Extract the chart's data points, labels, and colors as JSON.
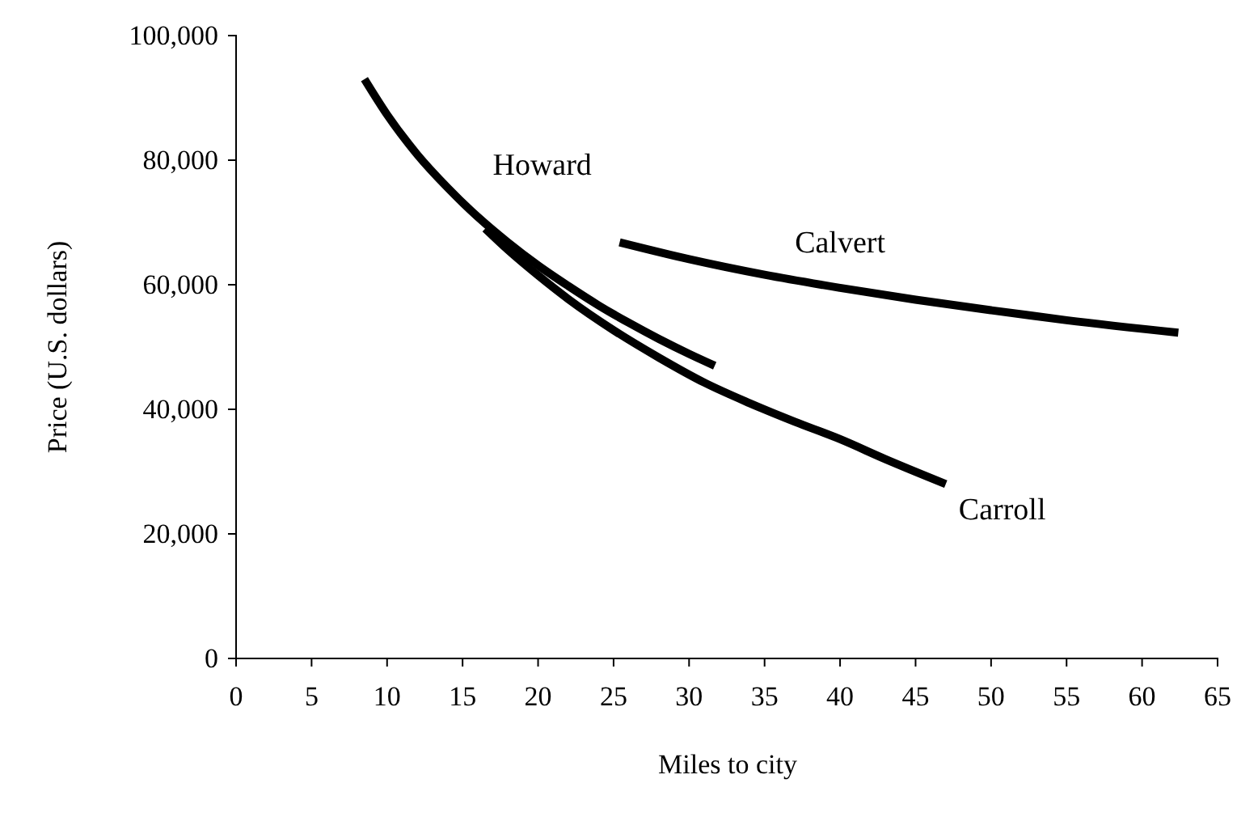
{
  "chart_data": {
    "type": "line",
    "xlabel": "Miles to city",
    "ylabel": "Price (U.S. dollars)",
    "xlim": [
      0,
      65
    ],
    "xticks": [
      0,
      5,
      10,
      15,
      20,
      25,
      30,
      35,
      40,
      45,
      50,
      55,
      60,
      65
    ],
    "ylim": [
      0,
      100000
    ],
    "yticks": [
      0,
      {
        "value": 20000,
        "label": "20,000"
      },
      {
        "value": 40000,
        "label": "40,000"
      },
      {
        "value": 60000,
        "label": "60,000"
      },
      {
        "value": 80000,
        "label": "80,000"
      },
      {
        "value": 100000,
        "label": "100,000"
      }
    ],
    "grid": false,
    "marker": "none",
    "line_style": "solid",
    "series": [
      {
        "name": "Howard",
        "color": "#000000",
        "x": [
          8.5,
          10,
          12,
          14,
          16,
          18,
          20,
          22,
          24,
          26,
          28,
          30,
          31.7
        ],
        "values": [
          93000,
          87300,
          80900,
          75600,
          70900,
          66800,
          63100,
          59800,
          56700,
          53900,
          51300,
          48900,
          47000
        ]
      },
      {
        "name": "Carroll",
        "color": "#000000",
        "x": [
          16.5,
          18,
          20,
          22,
          25,
          28,
          31,
          34,
          37,
          40,
          43,
          47
        ],
        "values": [
          69000,
          65600,
          61500,
          57700,
          52700,
          48300,
          44300,
          41000,
          38000,
          35200,
          32000,
          28000
        ]
      },
      {
        "name": "Calvert",
        "color": "#000000",
        "x": [
          25.4,
          30,
          35,
          40,
          45,
          50,
          55,
          62.4
        ],
        "values": [
          66800,
          64100,
          61600,
          59500,
          57600,
          55900,
          54300,
          52300
        ]
      }
    ]
  }
}
